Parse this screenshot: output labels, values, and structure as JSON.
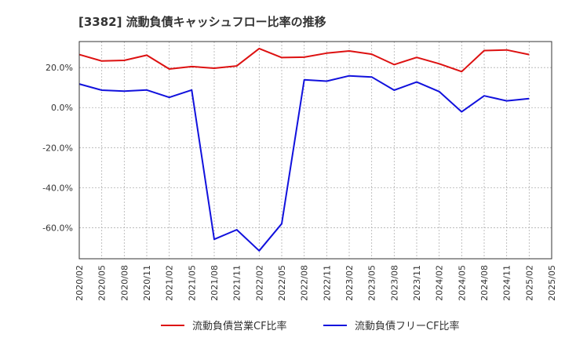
{
  "chart_data": {
    "type": "line",
    "title": "[3382]  流動負債キャッシュフロー比率の推移",
    "x": [
      "2020/02",
      "2020/05",
      "2020/08",
      "2020/11",
      "2021/02",
      "2021/05",
      "2021/08",
      "2021/11",
      "2022/02",
      "2022/05",
      "2022/08",
      "2022/11",
      "2023/02",
      "2023/05",
      "2023/08",
      "2023/11",
      "2024/02",
      "2024/05",
      "2024/08",
      "2024/11",
      "2025/02",
      "2025/05"
    ],
    "yticks": [
      20.0,
      0.0,
      -20.0,
      -40.0,
      -60.0
    ],
    "ytick_labels": [
      "20.0%",
      "0.0%",
      "-20.0%",
      "-40.0%",
      "-60.0%"
    ],
    "ylim": [
      -75.5,
      33.0
    ],
    "series": [
      {
        "name": "流動負債営業CF比率",
        "color": "#dd1111",
        "values": [
          26.5,
          23.3,
          23.6,
          26.2,
          19.3,
          20.5,
          19.7,
          20.8,
          29.5,
          25.0,
          25.2,
          27.2,
          28.3,
          26.7,
          21.5,
          25.1,
          21.9,
          18.0,
          28.5,
          28.8,
          26.5,
          null
        ]
      },
      {
        "name": "流動負債フリーCF比率",
        "color": "#1111dd",
        "values": [
          11.8,
          8.7,
          8.2,
          8.8,
          5.1,
          8.8,
          -65.8,
          -61.0,
          -71.5,
          -58.0,
          13.9,
          13.2,
          15.9,
          15.3,
          8.7,
          12.8,
          8.0,
          -2.1,
          5.9,
          3.4,
          4.5,
          null
        ]
      }
    ]
  }
}
